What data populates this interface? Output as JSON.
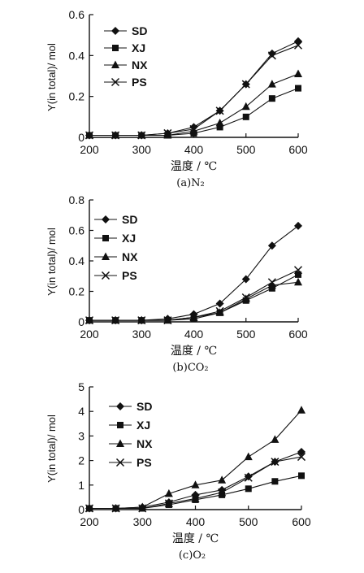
{
  "chart_data": [
    {
      "type": "line",
      "caption": "(a)N₂",
      "xlabel": "温度 / ℃",
      "ylabel": "Y(in total)/ mol",
      "xlim": [
        200,
        600
      ],
      "ylim": [
        0,
        0.6
      ],
      "xticks": [
        "200",
        "300",
        "400",
        "500",
        "600"
      ],
      "yticks": [
        "0",
        "0.2",
        "0.4",
        "0.6"
      ],
      "x": [
        200,
        250,
        300,
        350,
        400,
        450,
        500,
        550,
        600
      ],
      "legend_position": "top-left",
      "series": [
        {
          "name": "SD",
          "marker": "diamond",
          "values": [
            0.01,
            0.01,
            0.01,
            0.02,
            0.05,
            0.13,
            0.26,
            0.41,
            0.47
          ]
        },
        {
          "name": "XJ",
          "marker": "square",
          "values": [
            0.01,
            0.01,
            0.01,
            0.01,
            0.02,
            0.05,
            0.1,
            0.19,
            0.24
          ]
        },
        {
          "name": "NX",
          "marker": "triangle",
          "values": [
            0.01,
            0.01,
            0.01,
            0.01,
            0.03,
            0.07,
            0.15,
            0.26,
            0.31
          ]
        },
        {
          "name": "PS",
          "marker": "cross",
          "values": [
            0.01,
            0.01,
            0.01,
            0.02,
            0.04,
            0.13,
            0.26,
            0.4,
            0.45
          ]
        }
      ]
    },
    {
      "type": "line",
      "caption": "(b)CO₂",
      "xlabel": "温度 / ℃",
      "ylabel": "Y(in total)/ mol",
      "xlim": [
        200,
        600
      ],
      "ylim": [
        0,
        0.8
      ],
      "xticks": [
        "200",
        "300",
        "400",
        "500",
        "600"
      ],
      "yticks": [
        "0",
        "0.2",
        "0.4",
        "0.6",
        "0.8"
      ],
      "x": [
        200,
        250,
        300,
        350,
        400,
        450,
        500,
        550,
        600
      ],
      "legend_position": "top-left",
      "series": [
        {
          "name": "SD",
          "marker": "diamond",
          "values": [
            0.01,
            0.01,
            0.01,
            0.02,
            0.05,
            0.12,
            0.28,
            0.5,
            0.63
          ]
        },
        {
          "name": "XJ",
          "marker": "square",
          "values": [
            0.01,
            0.01,
            0.01,
            0.01,
            0.02,
            0.06,
            0.14,
            0.22,
            0.31
          ]
        },
        {
          "name": "NX",
          "marker": "triangle",
          "values": [
            0.01,
            0.01,
            0.01,
            0.01,
            0.03,
            0.06,
            0.15,
            0.24,
            0.26
          ]
        },
        {
          "name": "PS",
          "marker": "cross",
          "values": [
            0.01,
            0.01,
            0.01,
            0.01,
            0.03,
            0.07,
            0.16,
            0.26,
            0.34
          ]
        }
      ]
    },
    {
      "type": "line",
      "caption": "(c)O₂",
      "xlabel": "温度 / ℃",
      "ylabel": "Y(in total)/ mol",
      "xlim": [
        200,
        600
      ],
      "ylim": [
        0,
        5
      ],
      "xticks": [
        "200",
        "300",
        "400",
        "500",
        "600"
      ],
      "yticks": [
        "0",
        "1",
        "2",
        "3",
        "4",
        "5"
      ],
      "x": [
        200,
        250,
        300,
        350,
        400,
        450,
        500,
        550,
        600
      ],
      "legend_position": "top-left",
      "series": [
        {
          "name": "SD",
          "marker": "diamond",
          "values": [
            0.05,
            0.05,
            0.1,
            0.3,
            0.6,
            0.8,
            1.35,
            1.95,
            2.35
          ]
        },
        {
          "name": "XJ",
          "marker": "square",
          "values": [
            0.05,
            0.05,
            0.05,
            0.2,
            0.4,
            0.6,
            0.85,
            1.15,
            1.38
          ]
        },
        {
          "name": "NX",
          "marker": "triangle",
          "values": [
            0.05,
            0.05,
            0.1,
            0.65,
            1.0,
            1.2,
            2.15,
            2.85,
            4.05
          ]
        },
        {
          "name": "PS",
          "marker": "cross",
          "values": [
            0.05,
            0.05,
            0.05,
            0.25,
            0.45,
            0.7,
            1.3,
            1.95,
            2.15
          ]
        }
      ]
    }
  ]
}
